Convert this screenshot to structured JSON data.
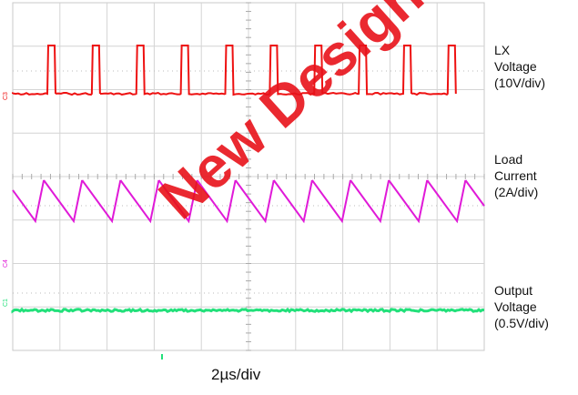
{
  "timebase": "2µs/div",
  "watermark": "New Designs",
  "channels": [
    {
      "id": "lx",
      "lines": [
        "LX",
        "Voltage",
        "(10V/div)"
      ],
      "color": "#ee1111",
      "marker": "C3"
    },
    {
      "id": "load",
      "lines": [
        "Load",
        "Current",
        "(2A/div)"
      ],
      "color": "#e01ad8",
      "marker": "C4"
    },
    {
      "id": "out",
      "lines": [
        "Output",
        "Voltage",
        "(0.5V/div)"
      ],
      "color": "#22e07a",
      "marker": "C1"
    }
  ],
  "chart_data": {
    "type": "line",
    "title": "",
    "xlabel": "2µs/div",
    "x_divisions": 10,
    "y_divisions": 8,
    "grid": true,
    "series": [
      {
        "name": "LX Voltage (10V/div)",
        "shape": "pulse train",
        "period_us": 2,
        "pulse_count": 12,
        "low_div": 0,
        "high_div": 1.4
      },
      {
        "name": "Load Current (2A/div)",
        "shape": "sawtooth",
        "period_us": 2,
        "cycles": 12,
        "peak_to_peak_div": 1.0
      },
      {
        "name": "Output Voltage (0.5V/div)",
        "shape": "dc with ripple",
        "level_div": 0,
        "ripple_div": 0.05
      }
    ]
  }
}
